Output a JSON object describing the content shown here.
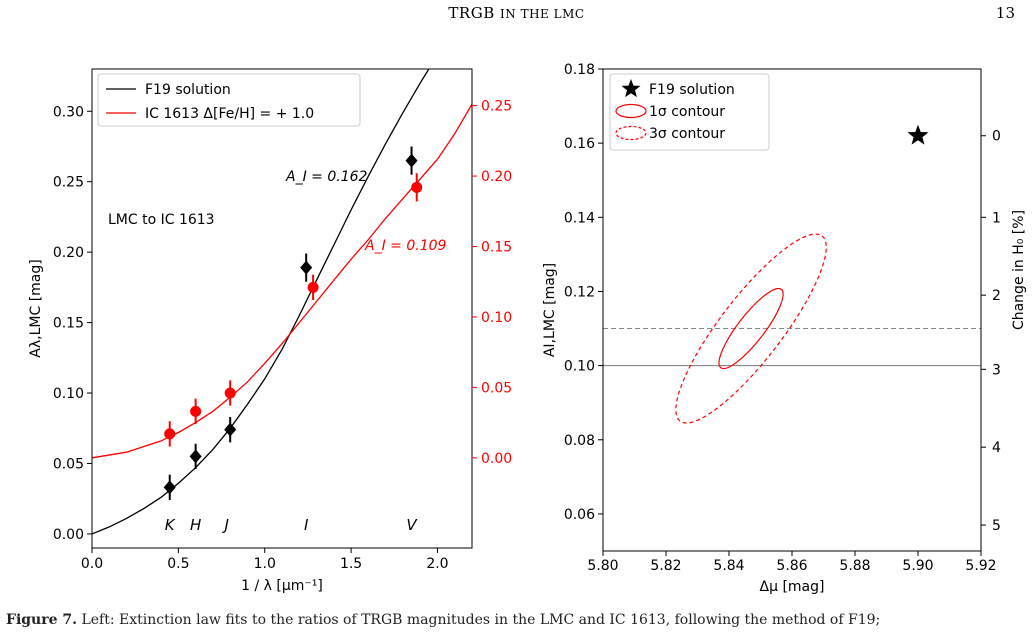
{
  "header": {
    "title_main": "TRGB",
    "title_rest": "in the LMC",
    "page_number": "13"
  },
  "caption": {
    "label": "Figure 7.",
    "text": "Left: Extinction law fits to the ratios of TRGB magnitudes in the LMC and IC 1613, following the method of F19;"
  },
  "chart_data": [
    {
      "type": "scatter",
      "panel": "left",
      "xlabel": "1 / λ [μm⁻¹]",
      "ylabel": "Aλ,LMC [mag]",
      "xlim": [
        0.0,
        2.2
      ],
      "ylim": [
        -0.01,
        0.33
      ],
      "x_ticks": [
        "0.0",
        "0.5",
        "1.0",
        "1.5",
        "2.0"
      ],
      "x_tick_values": [
        0.0,
        0.5,
        1.0,
        1.5,
        2.0
      ],
      "y_ticks": [
        "0.00",
        "0.05",
        "0.10",
        "0.15",
        "0.20",
        "0.25",
        "0.30"
      ],
      "y_tick_values": [
        0.0,
        0.05,
        0.1,
        0.15,
        0.2,
        0.25,
        0.3
      ],
      "right_axis": {
        "ticks": [
          "0.00",
          "0.05",
          "0.10",
          "0.15",
          "0.20",
          "0.25"
        ],
        "tick_values": [
          0.0,
          0.05,
          0.1,
          0.15,
          0.2,
          0.25
        ],
        "offset": 0.054,
        "color": "#ff0000"
      },
      "annotation": "LMC to IC 1613",
      "band_labels": [
        {
          "label": "K",
          "x": 0.45
        },
        {
          "label": "H",
          "x": 0.6
        },
        {
          "label": "J",
          "x": 0.78
        },
        {
          "label": "I",
          "x": 1.24
        },
        {
          "label": "V",
          "x": 1.85
        }
      ],
      "series": [
        {
          "name": "F19 solution",
          "kind": "line",
          "color": "#000000",
          "x": [
            0.0,
            0.1,
            0.2,
            0.3,
            0.4,
            0.5,
            0.6,
            0.7,
            0.8,
            0.9,
            1.0,
            1.1,
            1.2,
            1.3,
            1.4,
            1.5,
            1.6,
            1.7,
            1.8,
            1.9,
            2.0
          ],
          "y": [
            0.0,
            0.005,
            0.011,
            0.018,
            0.026,
            0.036,
            0.047,
            0.06,
            0.075,
            0.092,
            0.11,
            0.131,
            0.155,
            0.18,
            0.205,
            0.23,
            0.254,
            0.277,
            0.299,
            0.32,
            0.34
          ],
          "label_text": "A_I = 0.162"
        },
        {
          "name": "IC 1613 Δ[Fe/H] = + 1.0",
          "kind": "line",
          "color": "#ff0000",
          "x": [
            0.0,
            0.2,
            0.4,
            0.5,
            0.6,
            0.7,
            0.8,
            0.9,
            1.0,
            1.1,
            1.2,
            1.3,
            1.4,
            1.5,
            1.6,
            1.7,
            1.8,
            1.9,
            2.0,
            2.1,
            2.2
          ],
          "y": [
            0.054,
            0.058,
            0.066,
            0.072,
            0.079,
            0.087,
            0.097,
            0.108,
            0.121,
            0.135,
            0.15,
            0.165,
            0.18,
            0.195,
            0.209,
            0.224,
            0.238,
            0.252,
            0.266,
            0.284,
            0.305
          ],
          "label_text": "A_I = 0.109"
        },
        {
          "name": "F19 points",
          "kind": "points",
          "marker": "diamond",
          "color": "#000000",
          "x": [
            0.45,
            0.6,
            0.8,
            1.24,
            1.85
          ],
          "y": [
            0.033,
            0.055,
            0.074,
            0.189,
            0.265
          ],
          "yerr": [
            0.009,
            0.009,
            0.009,
            0.01,
            0.01
          ]
        },
        {
          "name": "IC 1613 points",
          "kind": "points",
          "marker": "circle",
          "color": "#ff0000",
          "x": [
            0.45,
            0.6,
            0.8,
            1.28,
            1.88
          ],
          "y": [
            0.071,
            0.087,
            0.1,
            0.175,
            0.246
          ],
          "yerr": [
            0.009,
            0.009,
            0.009,
            0.009,
            0.01
          ]
        }
      ],
      "legend_placement": "top-left",
      "grid": false
    },
    {
      "type": "contour",
      "panel": "right",
      "xlabel": "Δμ [mag]",
      "ylabel": "AI,LMC [mag]",
      "xlim": [
        5.8,
        5.92
      ],
      "ylim": [
        0.05,
        0.18
      ],
      "x_ticks": [
        "5.80",
        "5.82",
        "5.84",
        "5.86",
        "5.88",
        "5.90",
        "5.92"
      ],
      "x_tick_values": [
        5.8,
        5.82,
        5.84,
        5.86,
        5.88,
        5.9,
        5.92
      ],
      "y_ticks": [
        "0.06",
        "0.08",
        "0.10",
        "0.12",
        "0.14",
        "0.16",
        "0.18"
      ],
      "y_tick_values": [
        0.06,
        0.08,
        0.1,
        0.12,
        0.14,
        0.16,
        0.18
      ],
      "right_axis": {
        "label": "Change in H₀ [%]",
        "ticks": [
          "0",
          "1",
          "2",
          "3",
          "4",
          "5"
        ],
        "tick_values": [
          0.162,
          0.14,
          0.119,
          0.099,
          0.078,
          0.057
        ]
      },
      "star": {
        "name": "F19 solution",
        "x": 5.9,
        "y": 0.162,
        "color": "#000000"
      },
      "contours": [
        {
          "name": "1σ contour",
          "center": [
            5.847,
            0.11
          ],
          "x_span": [
            5.837,
            5.857
          ],
          "y_span": [
            0.099,
            0.121
          ],
          "style": "solid",
          "color": "#ff0000"
        },
        {
          "name": "3σ contour",
          "center": [
            5.847,
            0.11
          ],
          "x_span": [
            5.82,
            5.867
          ],
          "y_span": [
            0.084,
            0.136
          ],
          "style": "dashed",
          "color": "#ff0000"
        }
      ],
      "hlines": [
        {
          "y": 0.11,
          "style": "dashed",
          "color": "#888888"
        },
        {
          "y": 0.1,
          "style": "solid",
          "color": "#777777"
        }
      ],
      "legend_placement": "top-left",
      "grid": false
    }
  ]
}
